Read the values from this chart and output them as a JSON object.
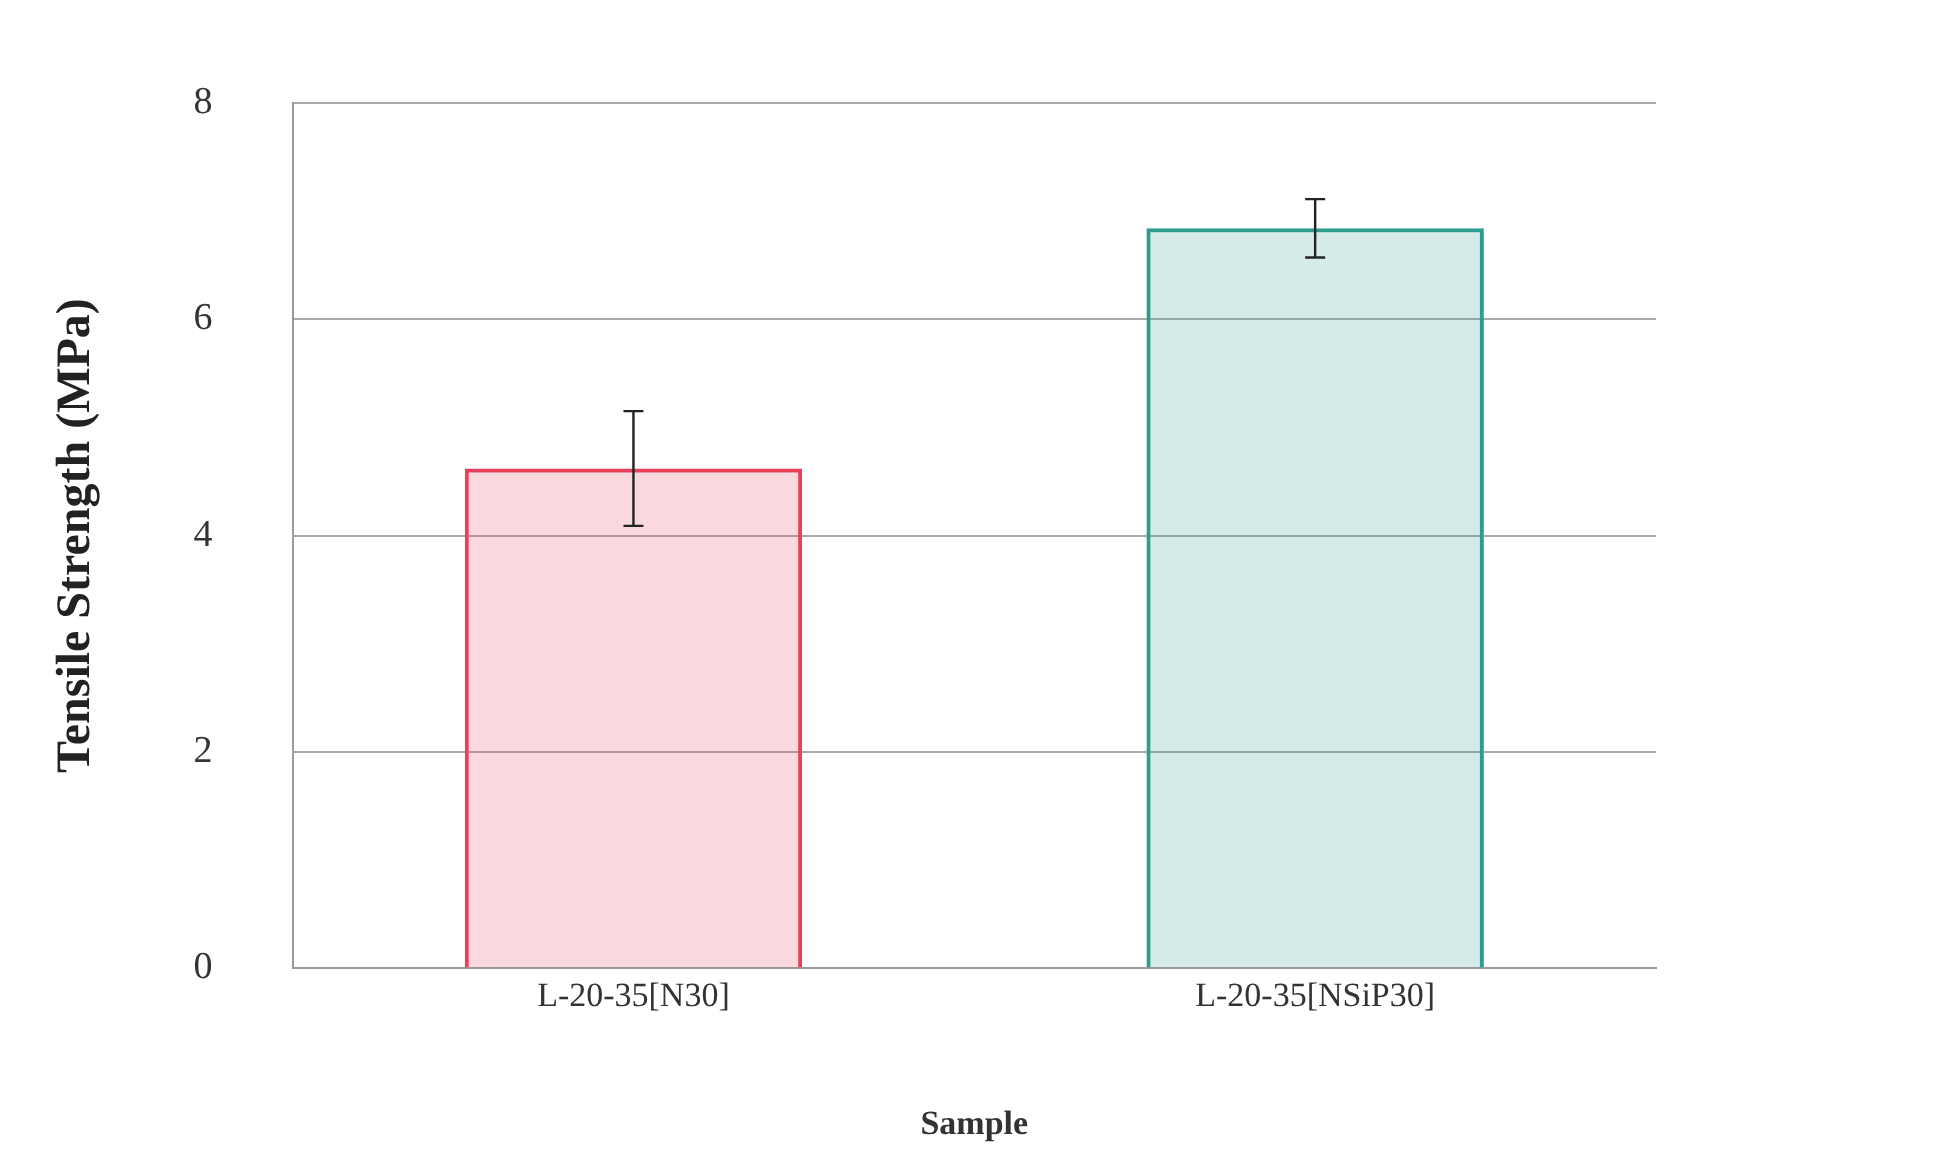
{
  "chart_data": {
    "type": "bar",
    "xlabel": "Sample",
    "ylabel": "Tensile Strength (MPa)",
    "categories": [
      "L-20-35[N30]",
      "L-20-35[NSiP30]"
    ],
    "values": [
      4.62,
      6.84
    ],
    "colors": [
      "#e8405a",
      "#2a9d8f"
    ],
    "errors": [
      0.53,
      0.27
    ],
    "ylim": [
      0,
      8
    ],
    "yticks": [
      0,
      2,
      4,
      6,
      8
    ],
    "grid": "y",
    "legend": false
  }
}
